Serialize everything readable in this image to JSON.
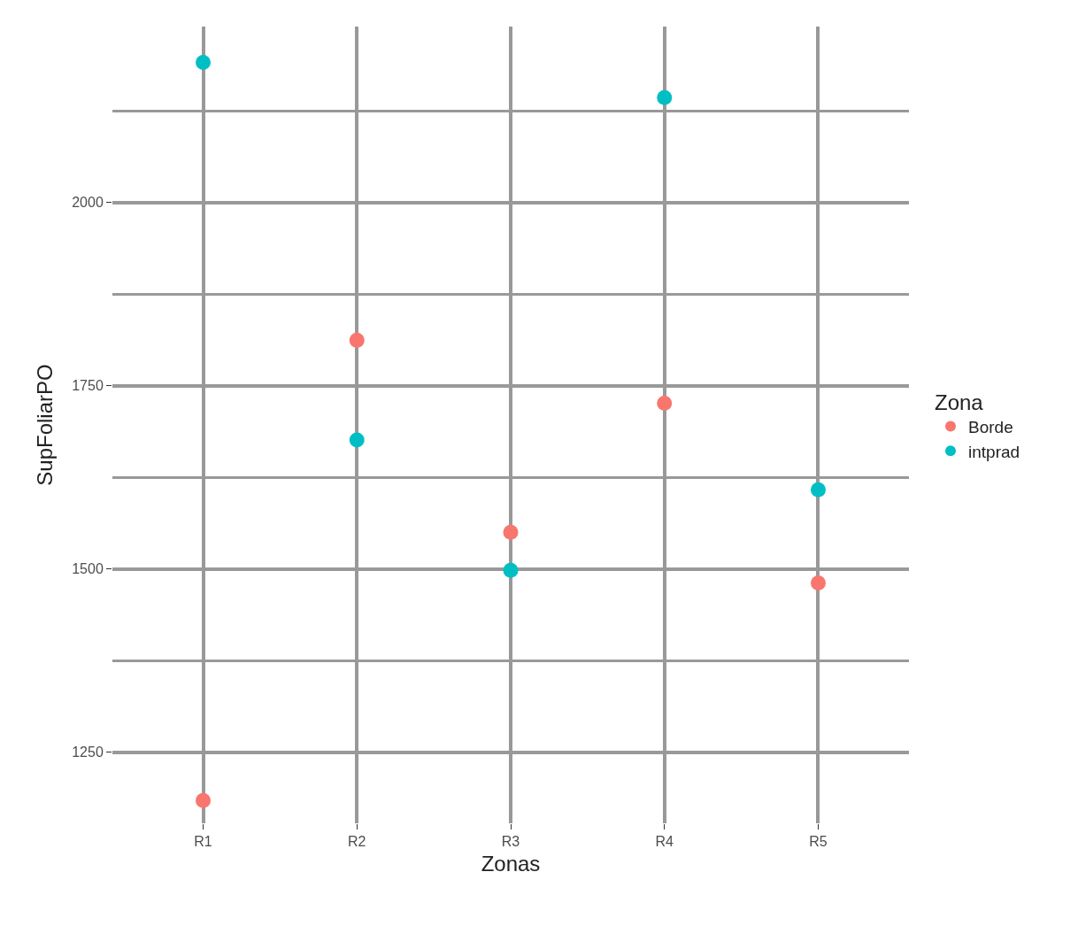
{
  "chart_data": {
    "type": "scatter",
    "xlabel": "Zonas",
    "ylabel": "SupFoliarPO",
    "legend_title": "Zona",
    "categories": [
      "R1",
      "R2",
      "R3",
      "R4",
      "R5"
    ],
    "series": [
      {
        "name": "Borde",
        "color": "#f8766d",
        "values": [
          1184,
          1812,
          1550,
          1726,
          1481
        ]
      },
      {
        "name": "intprad",
        "color": "#00bfc4",
        "values": [
          2191,
          1676,
          1498,
          2143,
          1608
        ]
      }
    ],
    "ylim": [
      1153,
      2240
    ],
    "yticks": [
      1250,
      {
        "value": 1375,
        "label": null
      },
      1500,
      {
        "value": 1625,
        "label": null
      },
      1750,
      {
        "value": 1875,
        "label": null
      },
      2000,
      {
        "value": 2125,
        "label": null
      }
    ],
    "grid": true,
    "legend": "right",
    "marker": "circle"
  }
}
